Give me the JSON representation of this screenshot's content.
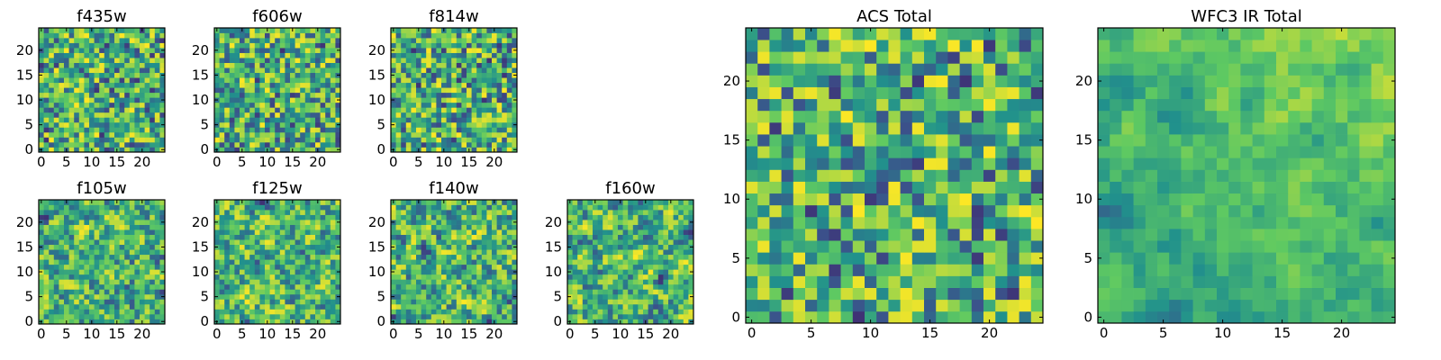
{
  "figure": {
    "colormap": "viridis",
    "colormap_stops": [
      "#440154",
      "#3b528b",
      "#21918c",
      "#5ec962",
      "#fde725"
    ],
    "frame_color": "#000000",
    "background": "#ffffff"
  },
  "chart_data": [
    {
      "type": "heatmap",
      "title": "f435w",
      "grid_size": 25,
      "xlim": [
        -0.5,
        24.5
      ],
      "ylim": [
        -0.5,
        24.5
      ],
      "xticks": [
        0,
        5,
        10,
        15,
        20
      ],
      "yticks": [
        0,
        5,
        10,
        15,
        20
      ],
      "seed": 101,
      "smooth": 0,
      "values_note": "25x25 noisy flux map"
    },
    {
      "type": "heatmap",
      "title": "f606w",
      "grid_size": 25,
      "xlim": [
        -0.5,
        24.5
      ],
      "ylim": [
        -0.5,
        24.5
      ],
      "xticks": [
        0,
        5,
        10,
        15,
        20
      ],
      "yticks": [
        0,
        5,
        10,
        15,
        20
      ],
      "seed": 202,
      "smooth": 0
    },
    {
      "type": "heatmap",
      "title": "f814w",
      "grid_size": 25,
      "xlim": [
        -0.5,
        24.5
      ],
      "ylim": [
        -0.5,
        24.5
      ],
      "xticks": [
        0,
        5,
        10,
        15,
        20
      ],
      "yticks": [
        0,
        5,
        10,
        15,
        20
      ],
      "seed": 303,
      "smooth": 0
    },
    {
      "type": "heatmap",
      "title": "f105w",
      "grid_size": 25,
      "xlim": [
        -0.5,
        24.5
      ],
      "ylim": [
        -0.5,
        24.5
      ],
      "xticks": [
        0,
        5,
        10,
        15,
        20
      ],
      "yticks": [
        0,
        5,
        10,
        15,
        20
      ],
      "seed": 404,
      "smooth": 1
    },
    {
      "type": "heatmap",
      "title": "f125w",
      "grid_size": 25,
      "xlim": [
        -0.5,
        24.5
      ],
      "ylim": [
        -0.5,
        24.5
      ],
      "xticks": [
        0,
        5,
        10,
        15,
        20
      ],
      "yticks": [
        0,
        5,
        10,
        15,
        20
      ],
      "seed": 505,
      "smooth": 1
    },
    {
      "type": "heatmap",
      "title": "f140w",
      "grid_size": 25,
      "xlim": [
        -0.5,
        24.5
      ],
      "ylim": [
        -0.5,
        24.5
      ],
      "xticks": [
        0,
        5,
        10,
        15,
        20
      ],
      "yticks": [
        0,
        5,
        10,
        15,
        20
      ],
      "seed": 606,
      "smooth": 1
    },
    {
      "type": "heatmap",
      "title": "f160w",
      "grid_size": 25,
      "xlim": [
        -0.5,
        24.5
      ],
      "ylim": [
        -0.5,
        24.5
      ],
      "xticks": [
        0,
        5,
        10,
        15,
        20
      ],
      "yticks": [
        0,
        5,
        10,
        15,
        20
      ],
      "seed": 707,
      "smooth": 1
    },
    {
      "type": "heatmap",
      "title": "ACS Total",
      "grid_size": 25,
      "xlim": [
        -0.5,
        24.5
      ],
      "ylim": [
        -0.5,
        24.5
      ],
      "xticks": [
        0,
        5,
        10,
        15,
        20
      ],
      "yticks": [
        0,
        5,
        10,
        15,
        20
      ],
      "seed": 808,
      "smooth": 0
    },
    {
      "type": "heatmap",
      "title": "WFC3 IR Total",
      "grid_size": 25,
      "xlim": [
        -0.5,
        24.5
      ],
      "ylim": [
        -0.5,
        24.5
      ],
      "xticks": [
        0,
        5,
        10,
        15,
        20
      ],
      "yticks": [
        0,
        5,
        10,
        15,
        20
      ],
      "seed": 909,
      "smooth": 2,
      "gradient": "bright top-right, dark bottom"
    }
  ]
}
